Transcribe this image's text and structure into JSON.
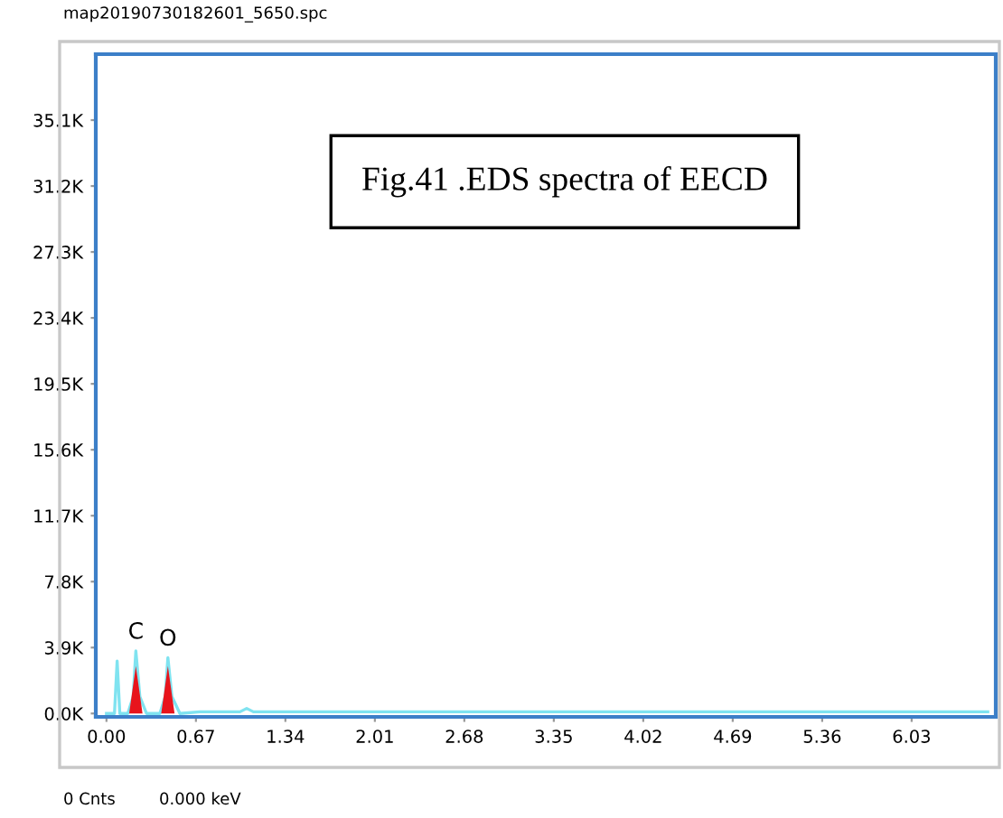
{
  "chart_data": {
    "type": "line",
    "title": "map20190730182601_5650.spc",
    "series": [
      {
        "color": "#7fe3f0",
        "x": [
          0.0,
          0.06,
          0.08,
          0.1,
          0.16,
          0.2,
          0.22,
          0.25,
          0.3,
          0.4,
          0.44,
          0.46,
          0.49,
          0.55,
          0.7,
          1.0,
          1.05,
          1.1,
          2.0,
          3.0,
          4.0,
          5.0,
          6.0,
          6.6
        ],
        "values": [
          0,
          0,
          3100,
          0,
          0,
          1000,
          3700,
          1000,
          0,
          0,
          1000,
          3300,
          1000,
          0,
          100,
          100,
          300,
          100,
          100,
          100,
          100,
          100,
          100,
          100
        ]
      },
      {
        "type": "area",
        "color": "#e8141c",
        "x": [
          0.17,
          0.22,
          0.27,
          0.34,
          0.41,
          0.46,
          0.51
        ],
        "values": [
          0,
          2800,
          0,
          null,
          0,
          2800,
          0
        ]
      }
    ],
    "xlim": [
      -0.08,
      6.66
    ],
    "ylim": [
      -200,
      39000
    ],
    "xticks": [
      {
        "value": 0,
        "label": "0.00"
      },
      0.67,
      1.34,
      2.01,
      2.68,
      3.35,
      4.02,
      4.69,
      5.36,
      6.03
    ],
    "yticks": [
      {
        "value": 0,
        "label": "0.0K"
      },
      {
        "value": 3900,
        "label": "3.9K"
      },
      {
        "value": 7800,
        "label": "7.8K"
      },
      {
        "value": 11700,
        "label": "11.7K"
      },
      {
        "value": 15600,
        "label": "15.6K"
      },
      {
        "value": 19500,
        "label": "19.5K"
      },
      {
        "value": 23400,
        "label": "23.4K"
      },
      {
        "value": 27300,
        "label": "27.3K"
      },
      {
        "value": 31200,
        "label": "31.2K"
      },
      {
        "value": 35100,
        "label": "35.1K"
      }
    ],
    "grid": false,
    "annotations": [
      {
        "text": "C",
        "x": 0.22,
        "y": 3700
      },
      {
        "text": "O",
        "x": 0.46,
        "y": 3300
      },
      "Fig.41 .EDS spectra of EECD",
      "0 Cnts",
      "0.000 keV"
    ]
  }
}
